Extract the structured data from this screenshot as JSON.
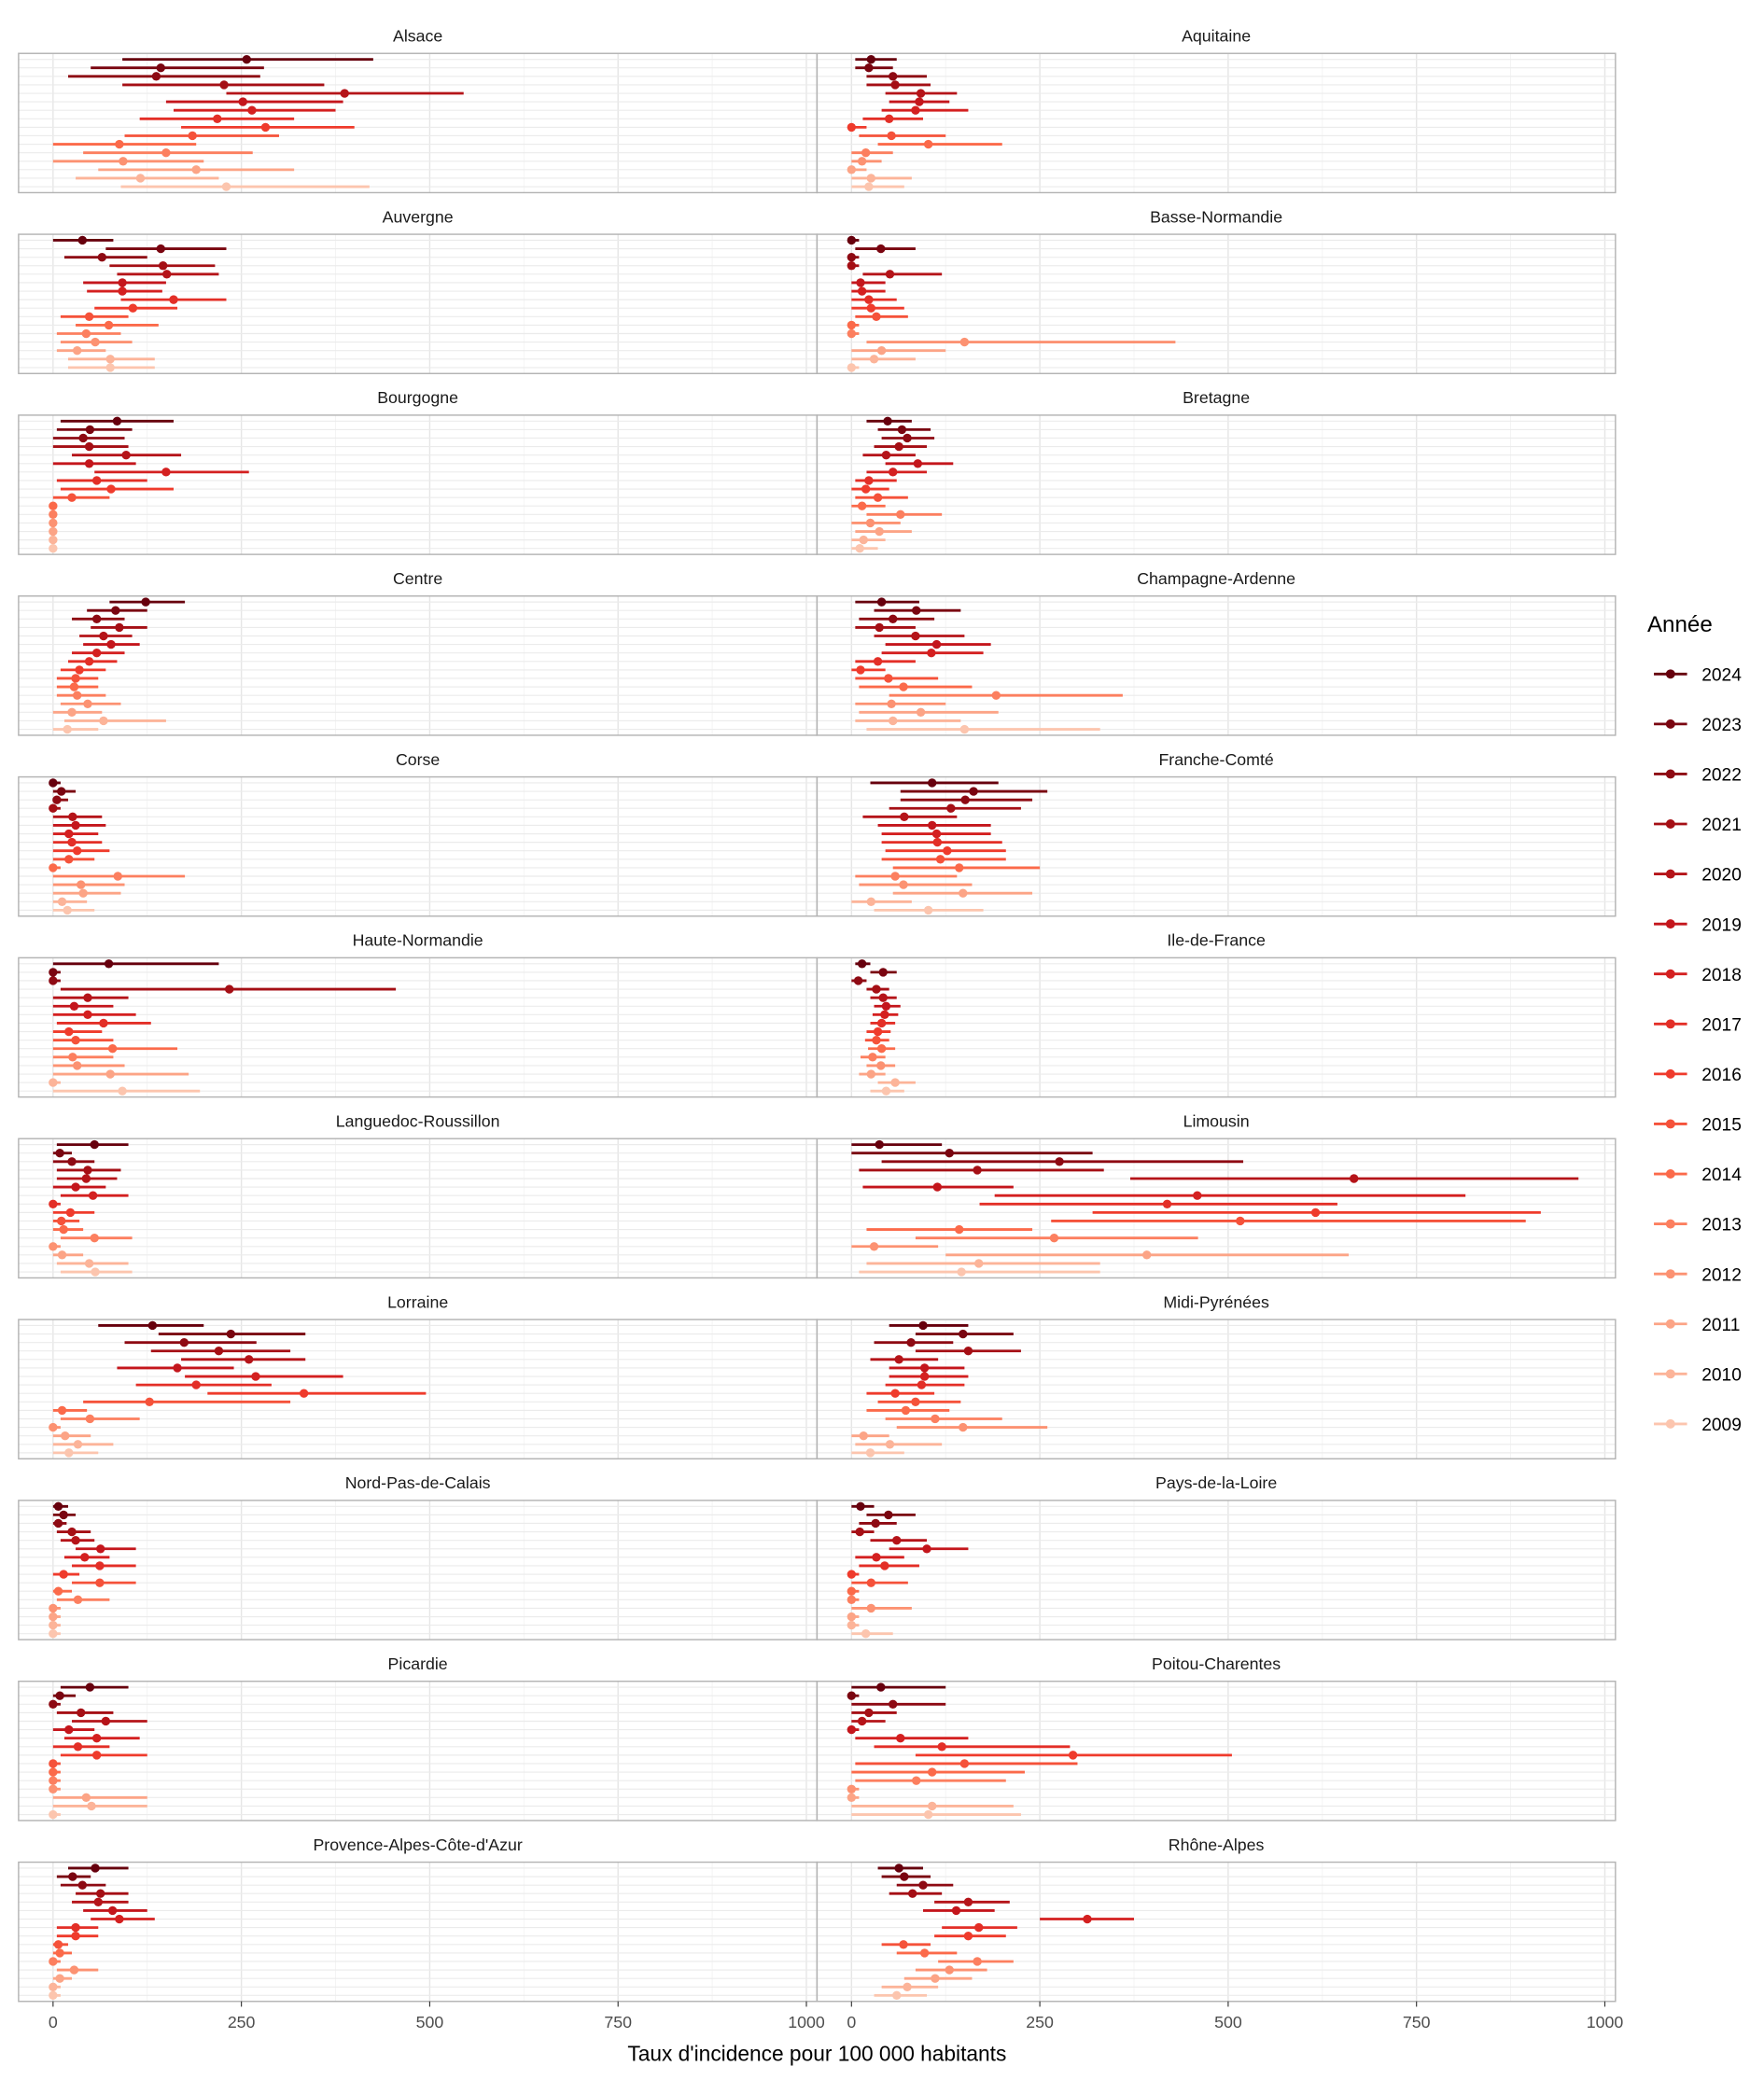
{
  "chart_data": {
    "type": "dot-errorbar-faceted",
    "xlabel": "Taux d'incidence pour 100 000 habitants",
    "xlim": [
      0,
      1000
    ],
    "xticks": [
      0,
      250,
      500,
      750,
      1000
    ],
    "grid": true,
    "legend": {
      "title": "Année",
      "placement": "right"
    },
    "years": [
      2024,
      2023,
      2022,
      2021,
      2020,
      2019,
      2018,
      2017,
      2016,
      2015,
      2014,
      2013,
      2012,
      2011,
      2010,
      2009
    ],
    "year_colors": [
      "#67000d",
      "#7a0510",
      "#8e0a13",
      "#a50f15",
      "#b51419",
      "#c4161c",
      "#d42020",
      "#e32f27",
      "#ef3b2c",
      "#f5523a",
      "#fb6a4a",
      "#fc7f5f",
      "#fc9272",
      "#fca486",
      "#fcb499",
      "#fcc5ae"
    ],
    "panels": [
      {
        "region": "Alsace",
        "values": [
          257,
          143,
          137,
          227,
          387,
          252,
          264,
          218,
          282,
          185,
          88,
          150,
          93,
          190,
          116,
          230
        ],
        "lower": [
          92,
          50,
          20,
          92,
          230,
          150,
          160,
          115,
          170,
          95,
          0,
          40,
          0,
          60,
          30,
          90
        ],
        "upper": [
          425,
          280,
          275,
          360,
          545,
          385,
          375,
          320,
          400,
          300,
          190,
          265,
          200,
          320,
          220,
          420
        ]
      },
      {
        "region": "Aquitaine",
        "values": [
          26,
          23,
          55,
          58,
          92,
          90,
          85,
          50,
          0,
          53,
          102,
          19,
          14,
          0,
          26,
          23
        ],
        "lower": [
          5,
          5,
          20,
          20,
          45,
          50,
          40,
          15,
          0,
          10,
          35,
          0,
          0,
          0,
          0,
          0
        ],
        "upper": [
          60,
          55,
          100,
          105,
          140,
          130,
          155,
          95,
          20,
          125,
          200,
          55,
          40,
          20,
          80,
          70
        ]
      },
      {
        "region": "Auvergne",
        "values": [
          39,
          143,
          65,
          146,
          151,
          92,
          92,
          160,
          106,
          48,
          74,
          44,
          56,
          32,
          76,
          76
        ],
        "lower": [
          0,
          70,
          15,
          75,
          85,
          40,
          45,
          90,
          55,
          10,
          30,
          5,
          10,
          5,
          20,
          20
        ],
        "upper": [
          80,
          230,
          125,
          215,
          220,
          150,
          145,
          230,
          165,
          100,
          140,
          90,
          105,
          70,
          135,
          135
        ]
      },
      {
        "region": "Basse-Normandie",
        "values": [
          0,
          39,
          0,
          0,
          51,
          12,
          14,
          23,
          26,
          33,
          0,
          0,
          150,
          40,
          30,
          0
        ],
        "lower": [
          0,
          5,
          0,
          0,
          15,
          0,
          0,
          0,
          0,
          5,
          0,
          0,
          20,
          0,
          0,
          0
        ],
        "upper": [
          10,
          85,
          10,
          10,
          120,
          45,
          45,
          60,
          70,
          75,
          10,
          10,
          430,
          125,
          85,
          10
        ]
      },
      {
        "region": "Bourgogne",
        "values": [
          85,
          49,
          40,
          48,
          97,
          48,
          150,
          58,
          77,
          25,
          0,
          0,
          0,
          0,
          0,
          0
        ],
        "lower": [
          10,
          5,
          0,
          0,
          25,
          0,
          55,
          5,
          10,
          0,
          0,
          0,
          0,
          0,
          0,
          0
        ],
        "upper": [
          160,
          105,
          95,
          100,
          170,
          110,
          260,
          125,
          160,
          75,
          0,
          0,
          0,
          0,
          0,
          0
        ]
      },
      {
        "region": "Bretagne",
        "values": [
          48,
          67,
          74,
          63,
          46,
          88,
          55,
          23,
          19,
          35,
          14,
          65,
          25,
          37,
          16,
          11
        ],
        "lower": [
          20,
          35,
          40,
          30,
          15,
          45,
          20,
          5,
          0,
          5,
          0,
          20,
          0,
          5,
          0,
          0
        ],
        "upper": [
          80,
          105,
          110,
          100,
          85,
          135,
          100,
          60,
          50,
          75,
          45,
          120,
          65,
          80,
          45,
          35
        ]
      },
      {
        "region": "Centre",
        "values": [
          123,
          83,
          58,
          88,
          67,
          77,
          58,
          48,
          35,
          30,
          28,
          32,
          46,
          25,
          67,
          19
        ],
        "lower": [
          75,
          45,
          25,
          50,
          35,
          40,
          25,
          20,
          10,
          5,
          5,
          5,
          10,
          0,
          15,
          0
        ],
        "upper": [
          175,
          125,
          95,
          125,
          105,
          115,
          95,
          85,
          70,
          60,
          60,
          70,
          90,
          65,
          150,
          60
        ]
      },
      {
        "region": "Champagne-Ardenne",
        "values": [
          40,
          86,
          55,
          37,
          85,
          113,
          106,
          35,
          12,
          49,
          69,
          192,
          53,
          92,
          55,
          150
        ],
        "lower": [
          5,
          30,
          10,
          5,
          30,
          45,
          40,
          5,
          0,
          5,
          10,
          50,
          5,
          10,
          5,
          20
        ],
        "upper": [
          90,
          145,
          110,
          85,
          150,
          185,
          175,
          85,
          45,
          115,
          160,
          360,
          125,
          195,
          145,
          330
        ]
      },
      {
        "region": "Corse",
        "values": [
          0,
          11,
          5,
          0,
          26,
          30,
          21,
          25,
          32,
          21,
          0,
          86,
          37,
          40,
          12,
          19
        ],
        "lower": [
          0,
          0,
          0,
          0,
          0,
          0,
          0,
          0,
          0,
          0,
          0,
          0,
          0,
          0,
          0,
          0
        ],
        "upper": [
          10,
          30,
          20,
          10,
          65,
          70,
          60,
          65,
          75,
          55,
          10,
          175,
          95,
          90,
          45,
          55
        ]
      },
      {
        "region": "Franche-Comté",
        "values": [
          107,
          162,
          151,
          132,
          70,
          107,
          113,
          114,
          127,
          118,
          143,
          58,
          69,
          148,
          26,
          102
        ],
        "lower": [
          25,
          65,
          65,
          50,
          15,
          35,
          40,
          40,
          45,
          40,
          55,
          5,
          10,
          55,
          0,
          30
        ],
        "upper": [
          195,
          260,
          240,
          225,
          140,
          185,
          185,
          200,
          205,
          205,
          250,
          140,
          160,
          240,
          80,
          175
        ]
      },
      {
        "region": "Haute-Normandie",
        "values": [
          74,
          0,
          0,
          234,
          46,
          28,
          46,
          67,
          21,
          30,
          79,
          26,
          32,
          76,
          0,
          92
        ],
        "lower": [
          0,
          0,
          0,
          10,
          0,
          0,
          0,
          5,
          0,
          0,
          0,
          0,
          0,
          0,
          0,
          0
        ],
        "upper": [
          220,
          10,
          10,
          455,
          100,
          80,
          110,
          130,
          65,
          80,
          165,
          80,
          95,
          180,
          10,
          195
        ]
      },
      {
        "region": "Ile-de-France",
        "values": [
          14,
          42,
          9,
          33,
          42,
          46,
          44,
          40,
          35,
          33,
          40,
          28,
          39,
          26,
          58,
          46
        ],
        "lower": [
          5,
          25,
          0,
          20,
          25,
          30,
          28,
          25,
          20,
          18,
          22,
          12,
          20,
          10,
          35,
          25
        ],
        "upper": [
          25,
          60,
          20,
          50,
          60,
          65,
          62,
          58,
          52,
          50,
          58,
          45,
          58,
          45,
          85,
          70
        ]
      },
      {
        "region": "Languedoc-Roussillon",
        "values": [
          55,
          9,
          25,
          46,
          44,
          30,
          53,
          0,
          23,
          11,
          14,
          55,
          0,
          12,
          48,
          56
        ],
        "lower": [
          5,
          0,
          0,
          5,
          5,
          0,
          10,
          0,
          0,
          0,
          0,
          10,
          0,
          0,
          5,
          10
        ],
        "upper": [
          100,
          25,
          55,
          90,
          85,
          70,
          100,
          10,
          55,
          35,
          40,
          105,
          10,
          40,
          100,
          105
        ]
      },
      {
        "region": "Limousin",
        "values": [
          37,
          130,
          276,
          167,
          667,
          114,
          459,
          419,
          616,
          516,
          143,
          269,
          30,
          392,
          169,
          146
        ],
        "lower": [
          0,
          0,
          40,
          10,
          370,
          15,
          190,
          170,
          320,
          265,
          20,
          85,
          0,
          125,
          20,
          10
        ],
        "upper": [
          120,
          320,
          520,
          335,
          965,
          215,
          815,
          645,
          915,
          895,
          240,
          460,
          115,
          660,
          330,
          330
        ]
      },
      {
        "region": "Lorraine",
        "values": [
          132,
          236,
          174,
          220,
          260,
          165,
          269,
          190,
          333,
          128,
          12,
          49,
          0,
          16,
          33,
          21
        ],
        "lower": [
          60,
          140,
          95,
          130,
          170,
          85,
          175,
          110,
          205,
          40,
          0,
          10,
          0,
          0,
          0,
          0
        ],
        "upper": [
          200,
          335,
          270,
          315,
          335,
          240,
          385,
          290,
          495,
          315,
          45,
          115,
          10,
          50,
          80,
          60
        ]
      },
      {
        "region": "Midi-Pyrénées",
        "values": [
          95,
          148,
          79,
          155,
          63,
          97,
          97,
          93,
          58,
          85,
          72,
          111,
          148,
          16,
          51,
          25
        ],
        "lower": [
          50,
          85,
          30,
          85,
          25,
          50,
          50,
          45,
          20,
          35,
          20,
          45,
          60,
          0,
          5,
          0
        ],
        "upper": [
          155,
          215,
          135,
          225,
          115,
          150,
          155,
          150,
          110,
          145,
          130,
          200,
          260,
          50,
          120,
          70
        ]
      },
      {
        "region": "Nord-Pas-de-Calais",
        "values": [
          7,
          14,
          7,
          25,
          30,
          63,
          42,
          62,
          14,
          62,
          7,
          33,
          0,
          0,
          0,
          0
        ],
        "lower": [
          0,
          0,
          0,
          5,
          10,
          30,
          15,
          25,
          0,
          25,
          0,
          5,
          0,
          0,
          0,
          0
        ],
        "upper": [
          20,
          30,
          18,
          50,
          55,
          110,
          75,
          110,
          35,
          110,
          25,
          75,
          10,
          10,
          10,
          10
        ]
      },
      {
        "region": "Pays-de-la-Loire",
        "values": [
          12,
          49,
          32,
          11,
          60,
          100,
          33,
          44,
          0,
          26,
          0,
          0,
          26,
          0,
          0,
          19
        ],
        "lower": [
          0,
          20,
          10,
          0,
          25,
          50,
          5,
          10,
          0,
          0,
          0,
          0,
          0,
          0,
          0,
          0
        ],
        "upper": [
          30,
          85,
          60,
          30,
          100,
          155,
          70,
          90,
          10,
          75,
          10,
          10,
          80,
          10,
          10,
          55
        ]
      },
      {
        "region": "Picardie",
        "values": [
          49,
          9,
          0,
          37,
          70,
          21,
          58,
          33,
          58,
          0,
          0,
          0,
          0,
          44,
          51,
          0
        ],
        "lower": [
          10,
          0,
          0,
          5,
          25,
          0,
          15,
          0,
          10,
          0,
          0,
          0,
          0,
          0,
          0,
          0
        ],
        "upper": [
          100,
          30,
          10,
          80,
          125,
          55,
          115,
          75,
          125,
          10,
          10,
          10,
          10,
          125,
          125,
          10
        ]
      },
      {
        "region": "Poitou-Charentes",
        "values": [
          39,
          0,
          55,
          23,
          14,
          0,
          65,
          120,
          294,
          150,
          107,
          86,
          0,
          0,
          107,
          102
        ],
        "lower": [
          0,
          0,
          0,
          0,
          0,
          0,
          5,
          30,
          85,
          5,
          0,
          5,
          0,
          0,
          0,
          0
        ],
        "upper": [
          125,
          10,
          125,
          60,
          45,
          10,
          155,
          290,
          505,
          300,
          230,
          205,
          10,
          10,
          215,
          225
        ]
      },
      {
        "region": "Provence-Alpes-Côte-d'Azur",
        "values": [
          56,
          26,
          39,
          63,
          60,
          79,
          88,
          30,
          30,
          7,
          9,
          0,
          28,
          9,
          0,
          0
        ],
        "lower": [
          20,
          5,
          10,
          30,
          25,
          40,
          50,
          5,
          5,
          0,
          0,
          0,
          5,
          0,
          0,
          0
        ],
        "upper": [
          100,
          50,
          70,
          100,
          100,
          125,
          135,
          60,
          60,
          20,
          25,
          10,
          60,
          25,
          10,
          10
        ]
      },
      {
        "region": "Rhône-Alpes",
        "values": [
          63,
          70,
          95,
          81,
          155,
          139,
          313,
          169,
          155,
          69,
          97,
          167,
          130,
          111,
          74,
          60
        ],
        "lower": [
          35,
          40,
          60,
          50,
          110,
          95,
          250,
          120,
          110,
          40,
          60,
          115,
          85,
          70,
          40,
          30
        ],
        "upper": [
          95,
          105,
          135,
          120,
          210,
          190,
          375,
          220,
          205,
          105,
          140,
          215,
          180,
          160,
          115,
          100
        ]
      }
    ]
  }
}
